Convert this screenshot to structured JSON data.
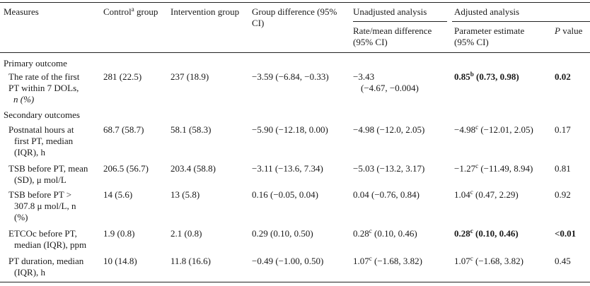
{
  "headers": {
    "measures": "Measures",
    "control": "Control",
    "control_sup": "a",
    "control_suffix": " group",
    "intervention": "Intervention group",
    "group_diff_line1": "Group difference (95%",
    "group_diff_line2": "CI)",
    "unadjusted": "Unadjusted analysis",
    "adjusted": "Adjusted analysis",
    "rate_line1": "Rate/mean difference",
    "rate_line2": "(95% CI)",
    "param_line1": "Parameter estimate",
    "param_line2": "(95% CI)",
    "p_letter": "P",
    "p_rest": " value"
  },
  "sections": {
    "primary": "Primary outcome",
    "secondary": "Secondary outcomes"
  },
  "rows": {
    "r1": {
      "measure_lines": [
        "The rate of the first",
        "PT within 7 DOLs,",
        "n (%)"
      ],
      "control": "281 (22.5)",
      "intervention": "237 (18.9)",
      "group_diff": "−3.59 (−6.84, −0.33)",
      "unadj_line1": "−3.43",
      "unadj_line2": "(−4.67, −0.004)",
      "adj_main": "0.85",
      "adj_sup": "b",
      "adj_rest": " (0.73, 0.98)",
      "p": "0.02"
    },
    "r2": {
      "measure_lines": [
        "Postnatal hours at",
        "first PT, median",
        "(IQR), h"
      ],
      "control": "68.7 (58.7)",
      "intervention": "58.1 (58.3)",
      "group_diff": "−5.90 (−12.18, 0.00)",
      "unadj": "−4.98 (−12.0, 2.05)",
      "adj_main": "−4.98",
      "adj_sup": "c",
      "adj_rest": " (−12.01, 2.05)",
      "p": "0.17"
    },
    "r3": {
      "measure_lines": [
        "TSB before PT, mean",
        "(SD), μ mol/L"
      ],
      "control": "206.5 (56.7)",
      "intervention": "203.4 (58.8)",
      "group_diff": "−3.11 (−13.6, 7.34)",
      "unadj": "−5.03 (−13.2, 3.17)",
      "adj_main": "−1.27",
      "adj_sup": "c",
      "adj_rest": " (−11.49, 8.94)",
      "p": "0.81"
    },
    "r4": {
      "measure_lines": [
        "TSB before PT >",
        "307.8 μ mol/L, n",
        "(%)"
      ],
      "control": "14 (5.6)",
      "intervention": "13 (5.8)",
      "group_diff": "0.16 (−0.05, 0.04)",
      "unadj": "0.04 (−0.76, 0.84)",
      "adj_main": "1.04",
      "adj_sup": "c",
      "adj_rest": " (0.47, 2.29)",
      "p": "0.92"
    },
    "r5": {
      "measure_lines": [
        "ETCOc before PT,",
        "median (IQR), ppm"
      ],
      "control": "1.9 (0.8)",
      "intervention": "2.1 (0.8)",
      "group_diff": "0.29 (0.10, 0.50)",
      "unadj_main": "0.28",
      "unadj_sup": "c",
      "unadj_rest": " (0.10, 0.46)",
      "adj_main": "0.28",
      "adj_sup": "c",
      "adj_rest": " (0.10, 0.46)",
      "p": "<0.01"
    },
    "r6": {
      "measure_lines": [
        "PT duration, median",
        "(IQR), h"
      ],
      "control": "10 (14.8)",
      "intervention": "11.8 (16.6)",
      "group_diff": "−0.49 (−1.00, 0.50)",
      "unadj_main": "1.07",
      "unadj_sup": "c",
      "unadj_rest": " (−1.68, 3.82)",
      "adj_main": "1.07",
      "adj_sup": "c",
      "adj_rest": " (−1.68, 3.82)",
      "p": "0.45"
    }
  }
}
